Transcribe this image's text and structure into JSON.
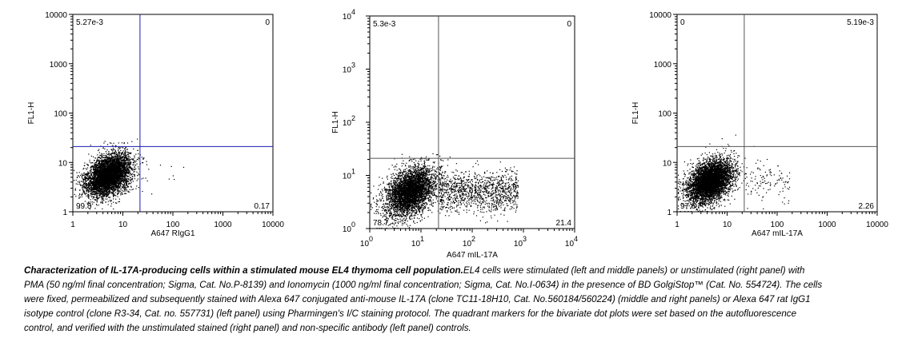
{
  "colors": {
    "quadrant_line_left": "#1b1bb0",
    "quadrant_line_other": "#555555",
    "dots": "#000000"
  },
  "caption": {
    "title": "Characterization of IL-17A-producing cells within a stimulated mouse EL4 thymoma cell population.",
    "body": "EL4 cells were stimulated  (left and middle panels) or unstimulated (right panel) with PMA (50 ng/ml final concentration; Sigma, Cat. No.P-8139) and Ionomycin (1000 ng/ml final concentration; Sigma, Cat. No.I-0634) in the presence of BD GolgiStop™ (Cat. No. 554724). The cells were fixed, permeabilized and subsequently stained with Alexa 647 conjugated anti-mouse IL-17A (clone TC11-18H10, Cat. No.560184/560224) (middle and right panels) or Alexa 647 rat IgG1 isotype control (clone R3-34, Cat. no. 557731) (left panel) using Pharmingen's I/C staining protocol. The quadrant markers for the bivariate dot plots were set based on the autofluorescence control, and verified with the unstimulated stained (right panel) and non-specific antibody  (left panel) controls."
  },
  "chart_data": [
    {
      "type": "scatter",
      "panel": "left",
      "xlabel": "A647 RIgG1",
      "ylabel": "FL1-H",
      "xscale": "log",
      "yscale": "log",
      "xlim": [
        1,
        10000
      ],
      "ylim": [
        1,
        10000
      ],
      "x_tick_labels": [
        "1",
        "10",
        "100",
        "1000",
        "10000"
      ],
      "y_tick_labels": [
        "1",
        "10",
        "100",
        "1000",
        "10000"
      ],
      "quadrant_gate": {
        "x": 22,
        "y": 21
      },
      "quadrant_percentages": {
        "upper_left": "5.27e-3",
        "upper_right": "0",
        "lower_left": "99.8",
        "lower_right": "0.17"
      },
      "population": {
        "center_x": 5,
        "center_y": 5.5,
        "spread_log": 0.22,
        "tail_fraction": 0.003
      }
    },
    {
      "type": "scatter",
      "panel": "middle",
      "xlabel": "A647 mIL-17A",
      "ylabel": "FL1-H",
      "xscale": "log",
      "yscale": "log",
      "xlim": [
        1,
        10000
      ],
      "ylim": [
        1,
        10000
      ],
      "x_tick_labels": [
        "10^0",
        "10^1",
        "10^2",
        "10^3",
        "10^4"
      ],
      "y_tick_labels": [
        "10^0",
        "10^1",
        "10^2",
        "10^3",
        "10^4"
      ],
      "quadrant_gate": {
        "x": 22,
        "y": 21
      },
      "quadrant_percentages": {
        "upper_left": "5.3e-3",
        "upper_right": "0",
        "lower_left": "78.7",
        "lower_right": "21.4"
      },
      "population": {
        "center_x": 6,
        "center_y": 5,
        "spread_log": 0.24,
        "tail_fraction": 0.214
      }
    },
    {
      "type": "scatter",
      "panel": "right",
      "xlabel": "A647 mIL-17A",
      "ylabel": "FL1-H",
      "xscale": "log",
      "yscale": "log",
      "xlim": [
        1,
        10000
      ],
      "ylim": [
        1,
        10000
      ],
      "x_tick_labels": [
        "1",
        "10",
        "100",
        "1000",
        "10000"
      ],
      "y_tick_labels": [
        "1",
        "10",
        "100",
        "1000",
        "10000"
      ],
      "quadrant_gate": {
        "x": 22,
        "y": 21
      },
      "quadrant_percentages": {
        "upper_left": "0",
        "upper_right": "5.19e-3",
        "lower_left": "97.8",
        "lower_right": "2.26"
      },
      "population": {
        "center_x": 4.5,
        "center_y": 4.2,
        "spread_log": 0.22,
        "tail_fraction": 0.023
      }
    }
  ]
}
